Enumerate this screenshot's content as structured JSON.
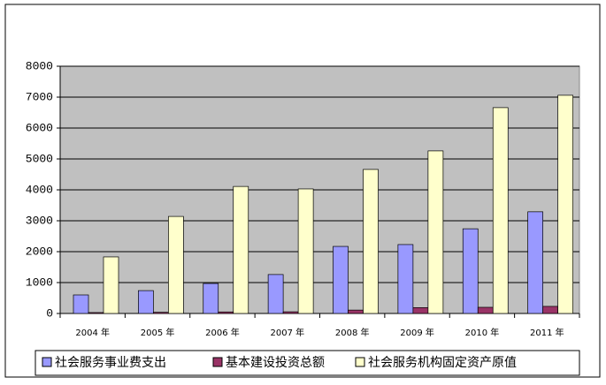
{
  "chart_data": {
    "type": "bar",
    "categories": [
      "2004 年",
      "2005 年",
      "2006 年",
      "2007 年",
      "2008 年",
      "2009 年",
      "2010 年",
      "2011 年"
    ],
    "series": [
      {
        "name": "社会服务事业费支出",
        "color": "#9999ff",
        "values": [
          600,
          740,
          970,
          1260,
          2170,
          2230,
          2740,
          3290
        ]
      },
      {
        "name": "基本建设投资总额",
        "color": "#993366",
        "values": [
          30,
          40,
          50,
          55,
          110,
          190,
          200,
          230
        ]
      },
      {
        "name": "社会服务机构固定资产原值",
        "color": "#ffffcc",
        "values": [
          1830,
          3140,
          4110,
          4030,
          4660,
          5260,
          6660,
          7060
        ]
      }
    ],
    "ylim": [
      0,
      8000
    ],
    "yticks": [
      0,
      1000,
      2000,
      3000,
      4000,
      5000,
      6000,
      7000,
      8000
    ],
    "grid": true,
    "legend": "bottom",
    "plot_background": "#c0c0c0"
  }
}
